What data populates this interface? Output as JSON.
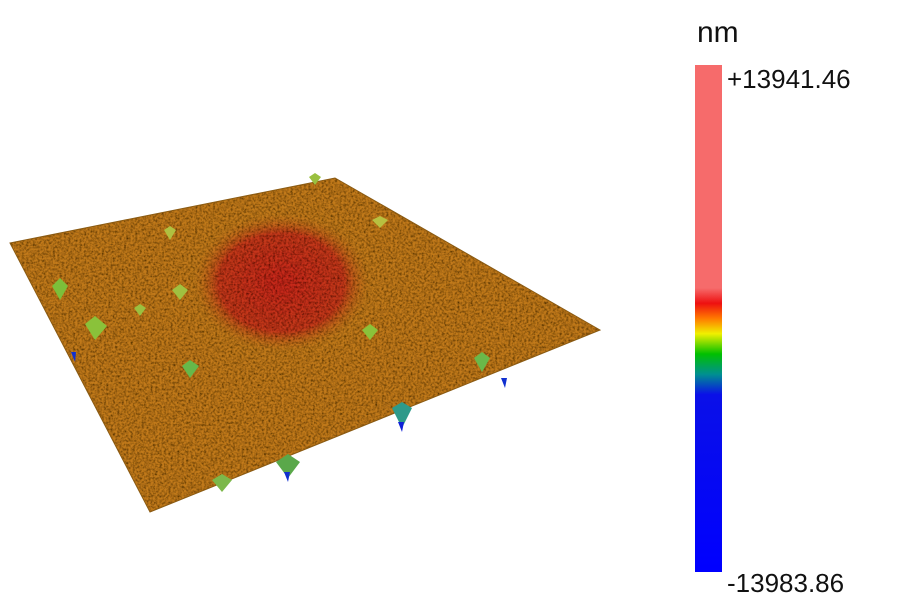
{
  "colorbar": {
    "unit": "nm",
    "max_label": "+13941.46",
    "min_label": "-13983.86"
  }
}
